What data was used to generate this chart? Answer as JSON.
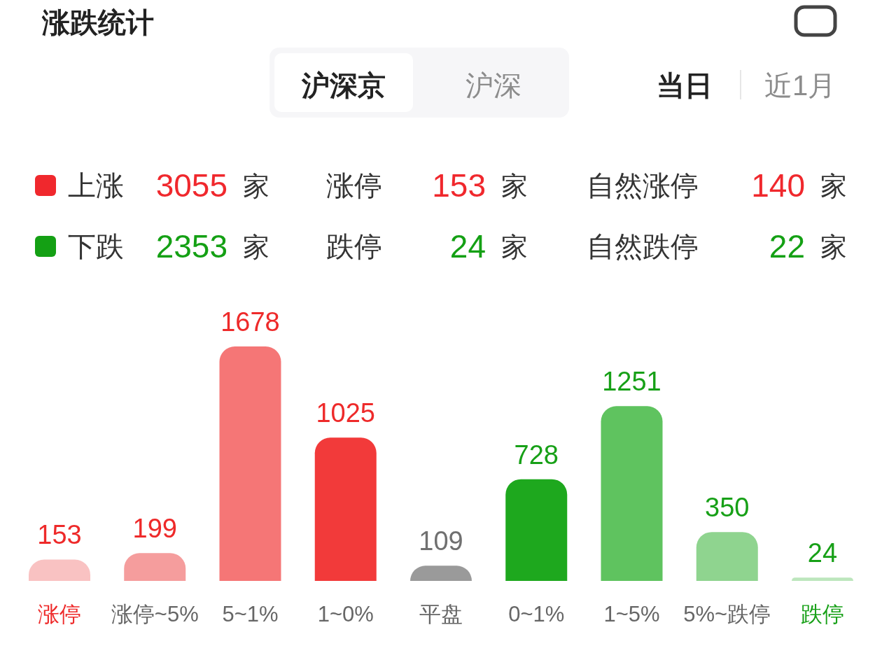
{
  "chart_data": [
    {
      "type": "other",
      "title": "涨跌统计",
      "annotations": [
        "沪深京",
        "沪深",
        "当日",
        "近1月"
      ],
      "categories": [
        "上涨",
        "涨停",
        "自然涨停",
        "下跌",
        "跌停",
        "自然跌停"
      ],
      "value_labels": [
        "3055 家",
        "153 家",
        "140 家",
        "2353 家",
        "24 家",
        "22 家"
      ],
      "colors": [
        "#f0282d",
        "#f0282d",
        "#f0282d",
        "#14a014",
        "#14a014",
        "#14a014"
      ]
    },
    {
      "type": "bar",
      "categories": [
        "涨停",
        "涨停~5%",
        "5~1%",
        "1~0%",
        "平盘",
        "0~1%",
        "1~5%",
        "5%~跌停",
        "跌停"
      ],
      "values": [
        153,
        199,
        1678,
        1025,
        109,
        728,
        1251,
        350,
        24
      ],
      "colors": [
        "#f9c2c2",
        "#f59d9d",
        "#f57676",
        "#f23a3a",
        "#9a9a9a",
        "#1ea81e",
        "#5fc35f",
        "#8fd48f",
        "#bde6bd"
      ],
      "data_labels": true
    }
  ]
}
